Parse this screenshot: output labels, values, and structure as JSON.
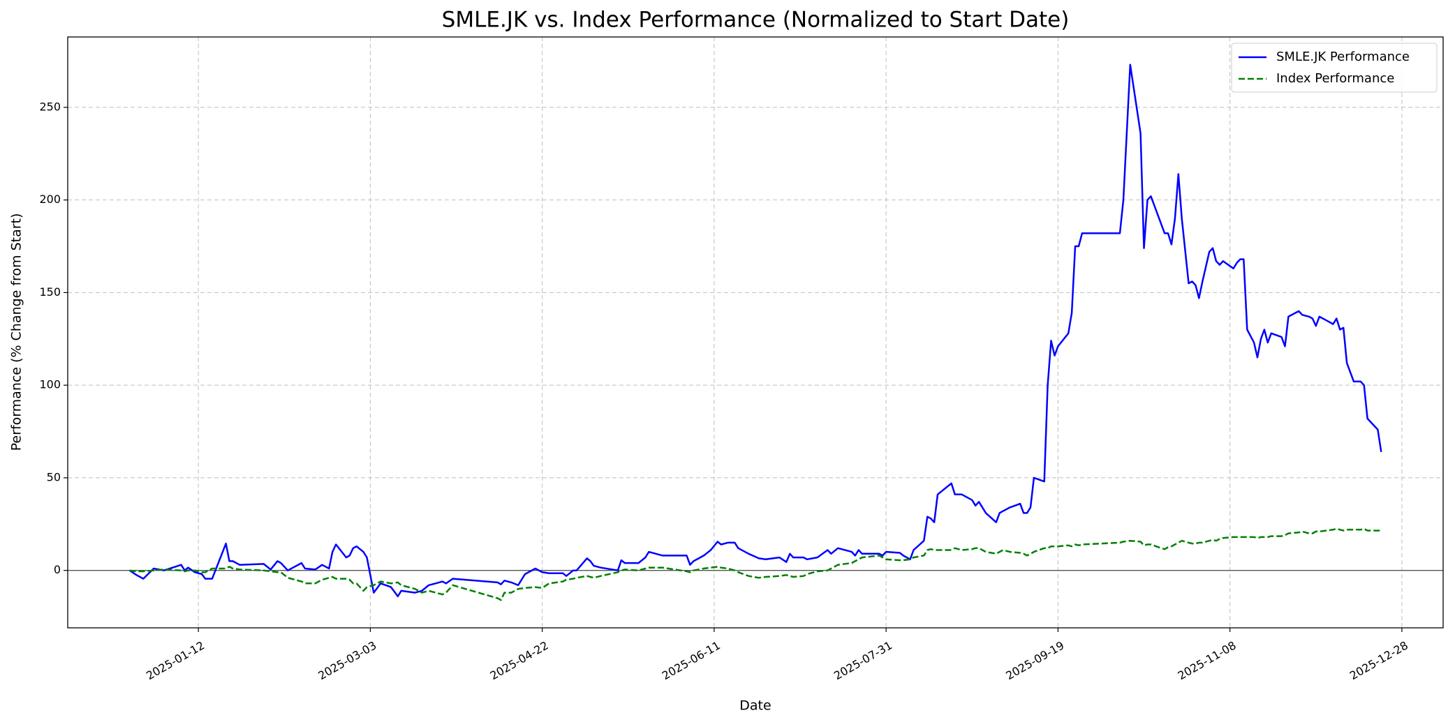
{
  "chart_data": {
    "type": "line",
    "title": "SMLE.JK vs. Index Performance (Normalized to Start Date)",
    "x_label": "Date",
    "y_label": "Performance (% Change from Start)",
    "x": [
      "2024-12-23",
      "2024-12-25",
      "2024-12-27",
      "2024-12-30",
      "2025-01-02",
      "2025-01-07",
      "2025-01-08",
      "2025-01-09",
      "2025-01-11",
      "2025-01-13",
      "2025-01-14",
      "2025-01-16",
      "2025-01-20",
      "2025-01-21",
      "2025-01-22",
      "2025-01-24",
      "2025-01-31",
      "2025-02-02",
      "2025-02-04",
      "2025-02-05",
      "2025-02-07",
      "2025-02-11",
      "2025-02-12",
      "2025-02-15",
      "2025-02-17",
      "2025-02-19",
      "2025-02-20",
      "2025-02-21",
      "2025-02-24",
      "2025-02-25",
      "2025-02-26",
      "2025-02-27",
      "2025-03-01",
      "2025-03-02",
      "2025-03-04",
      "2025-03-06",
      "2025-03-09",
      "2025-03-11",
      "2025-03-12",
      "2025-03-16",
      "2025-03-18",
      "2025-03-20",
      "2025-03-22",
      "2025-03-24",
      "2025-03-25",
      "2025-03-27",
      "2025-04-09",
      "2025-04-10",
      "2025-04-11",
      "2025-04-13",
      "2025-04-15",
      "2025-04-17",
      "2025-04-20",
      "2025-04-22",
      "2025-04-24",
      "2025-04-28",
      "2025-04-29",
      "2025-05-01",
      "2025-05-02",
      "2025-05-05",
      "2025-05-06",
      "2025-05-07",
      "2025-05-09",
      "2025-05-14",
      "2025-05-15",
      "2025-05-16",
      "2025-05-20",
      "2025-05-22",
      "2025-05-23",
      "2025-05-27",
      "2025-06-03",
      "2025-06-04",
      "2025-06-05",
      "2025-06-08",
      "2025-06-10",
      "2025-06-12",
      "2025-06-13",
      "2025-06-15",
      "2025-06-17",
      "2025-06-18",
      "2025-06-21",
      "2025-06-24",
      "2025-06-26",
      "2025-06-30",
      "2025-07-02",
      "2025-07-03",
      "2025-07-04",
      "2025-07-07",
      "2025-07-08",
      "2025-07-11",
      "2025-07-14",
      "2025-07-15",
      "2025-07-17",
      "2025-07-21",
      "2025-07-22",
      "2025-07-23",
      "2025-07-24",
      "2025-07-29",
      "2025-07-30",
      "2025-07-31",
      "2025-08-04",
      "2025-08-05",
      "2025-08-07",
      "2025-08-08",
      "2025-08-11",
      "2025-08-12",
      "2025-08-13",
      "2025-08-14",
      "2025-08-15",
      "2025-08-19",
      "2025-08-20",
      "2025-08-22",
      "2025-08-25",
      "2025-08-26",
      "2025-08-27",
      "2025-08-28",
      "2025-08-29",
      "2025-09-01",
      "2025-09-02",
      "2025-09-03",
      "2025-09-05",
      "2025-09-08",
      "2025-09-09",
      "2025-09-10",
      "2025-09-11",
      "2025-09-12",
      "2025-09-15",
      "2025-09-16",
      "2025-09-17",
      "2025-09-18",
      "2025-09-19",
      "2025-09-22",
      "2025-09-23",
      "2025-09-24",
      "2025-09-25",
      "2025-09-26",
      "2025-10-07",
      "2025-10-08",
      "2025-10-10",
      "2025-10-13",
      "2025-10-14",
      "2025-10-15",
      "2025-10-16",
      "2025-10-19",
      "2025-10-20",
      "2025-10-21",
      "2025-10-22",
      "2025-10-23",
      "2025-10-24",
      "2025-10-25",
      "2025-10-27",
      "2025-10-28",
      "2025-10-29",
      "2025-10-30",
      "2025-10-31",
      "2025-11-02",
      "2025-11-03",
      "2025-11-04",
      "2025-11-05",
      "2025-11-06",
      "2025-11-09",
      "2025-11-10",
      "2025-11-11",
      "2025-11-12",
      "2025-11-13",
      "2025-11-15",
      "2025-11-16",
      "2025-11-17",
      "2025-11-18",
      "2025-11-19",
      "2025-11-20",
      "2025-11-23",
      "2025-11-24",
      "2025-11-25",
      "2025-11-28",
      "2025-11-29",
      "2025-12-01",
      "2025-12-02",
      "2025-12-03",
      "2025-12-04",
      "2025-12-06",
      "2025-12-08",
      "2025-12-09",
      "2025-12-10",
      "2025-12-11",
      "2025-12-12",
      "2025-12-14",
      "2025-12-16",
      "2025-12-17",
      "2025-12-18",
      "2025-12-21",
      "2025-12-22"
    ],
    "series": [
      {
        "name": "SMLE.JK Performance",
        "color": "#0000ff",
        "linestyle": "solid",
        "values": [
          0,
          -2.5,
          -4.5,
          1,
          0,
          3,
          0,
          1.5,
          -1,
          -2,
          -4.5,
          -4.5,
          14.5,
          5,
          5,
          3,
          3.5,
          0.5,
          5,
          4,
          0,
          4,
          1,
          0.5,
          3,
          1,
          10,
          14,
          7,
          8,
          12,
          13,
          10,
          7,
          -12,
          -7,
          -9,
          -14,
          -11,
          -12,
          -11,
          -8,
          -7,
          -6,
          -7,
          -4.5,
          -6.5,
          -7.5,
          -5.5,
          -6.5,
          -8,
          -2,
          1,
          -1,
          -1.5,
          -1.5,
          -3,
          0,
          0,
          6.5,
          5,
          2.5,
          1.5,
          0,
          5.5,
          4,
          4,
          7,
          10,
          8,
          8,
          3,
          5,
          8,
          11,
          15.5,
          14,
          15,
          15,
          12,
          9,
          6.5,
          6,
          7,
          4.5,
          9,
          7,
          7,
          6,
          7,
          11,
          9,
          12,
          10,
          8,
          11,
          9,
          9,
          8,
          10,
          9.5,
          8,
          6,
          11,
          16,
          29,
          28,
          26,
          41,
          47,
          41,
          41,
          38,
          35,
          37,
          34,
          31,
          26,
          31,
          32,
          34,
          36,
          31,
          31,
          34,
          50,
          48,
          100,
          124,
          116,
          121,
          128,
          139,
          175,
          175,
          182,
          182,
          200,
          273,
          236,
          174,
          200,
          202,
          187,
          182,
          182,
          176,
          190,
          214,
          190,
          155,
          156,
          154,
          147,
          156,
          172,
          174,
          167,
          165,
          167,
          163,
          166,
          168,
          168,
          130,
          123,
          115,
          125,
          130,
          123,
          128,
          126,
          121,
          137,
          140,
          138,
          137,
          136,
          132,
          137,
          135,
          133,
          136,
          130,
          131,
          112,
          102,
          102,
          100,
          82,
          76,
          64
        ]
      },
      {
        "name": "Index Performance",
        "color": "#008000",
        "linestyle": "dashed",
        "values": [
          0,
          -0.5,
          -0.5,
          0,
          0.5,
          0,
          -0.5,
          0,
          0,
          -1,
          -1,
          1,
          1,
          2,
          1,
          0.5,
          0,
          -0.5,
          -1,
          -1,
          -4,
          -6,
          -7,
          -7,
          -5,
          -4,
          -3.5,
          -4.5,
          -4.5,
          -5,
          -7,
          -7,
          -11,
          -9,
          -8,
          -6,
          -7,
          -6.5,
          -8,
          -10,
          -12,
          -11,
          -12,
          -13,
          -12,
          -8,
          -15,
          -16,
          -12,
          -12,
          -10,
          -9.5,
          -9,
          -9.5,
          -7,
          -6,
          -5,
          -4.5,
          -4,
          -3,
          -3.5,
          -4,
          -3,
          -1,
          0,
          0.5,
          0,
          1,
          1.5,
          1.5,
          -0.5,
          -1,
          0,
          1,
          1.5,
          2,
          1.5,
          1,
          0,
          -1,
          -3,
          -4,
          -3.5,
          -3,
          -2.5,
          -3,
          -3.5,
          -3,
          -2,
          -0.5,
          0,
          1,
          3,
          4,
          5,
          6,
          7,
          8,
          7,
          6,
          5.5,
          5.5,
          6,
          7,
          8,
          11,
          11.5,
          11,
          11,
          11,
          12,
          11,
          11.5,
          12,
          12,
          11,
          10,
          9,
          10,
          11,
          10,
          9.5,
          9,
          8,
          9,
          10,
          12,
          12,
          13,
          13,
          13,
          13.5,
          13,
          14,
          13.5,
          14,
          15,
          15.5,
          16,
          15.5,
          13.5,
          14,
          14,
          12,
          11.5,
          12.5,
          13,
          14,
          15,
          16,
          15,
          14.5,
          14.5,
          15,
          15,
          16,
          16.5,
          16,
          17,
          17.5,
          18,
          18,
          18,
          18,
          18,
          18,
          17.5,
          18,
          18,
          18,
          18.5,
          18.5,
          19,
          20,
          20.5,
          21,
          20,
          20,
          21,
          21,
          21.5,
          22,
          22.5,
          22,
          21.5,
          22,
          22,
          22,
          22.5,
          21.5,
          21.5,
          21.5
        ]
      }
    ],
    "xlim": [
      "2024-12-05",
      "2026-01-09"
    ],
    "xticks": [
      "2025-01-12",
      "2025-03-03",
      "2025-04-22",
      "2025-06-11",
      "2025-07-31",
      "2025-09-19",
      "2025-11-08",
      "2025-12-28"
    ],
    "ylim": [
      -31,
      288
    ],
    "yticks": [
      0,
      50,
      100,
      150,
      200,
      250
    ],
    "hline": 0,
    "grid": true,
    "legend": "upper right"
  }
}
